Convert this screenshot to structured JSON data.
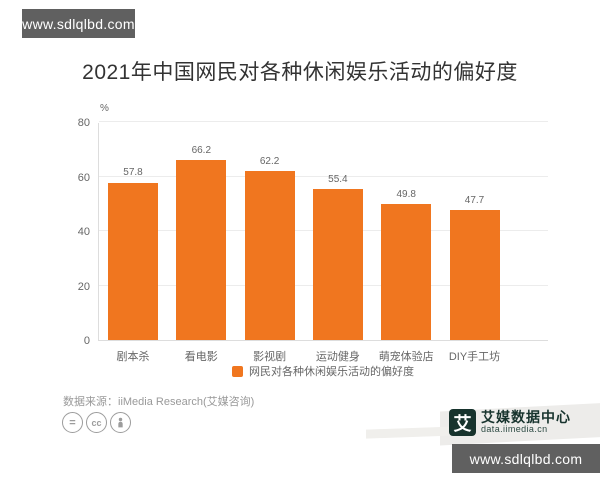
{
  "watermark_top": {
    "text": "www.sdlqlbd.com"
  },
  "watermark_bottom": {
    "text": "www.sdlqlbd.com"
  },
  "chart_data": {
    "type": "bar",
    "title": "2021年中国网民对各种休闲娱乐活动的偏好度",
    "categories": [
      "剧本杀",
      "看电影",
      "影视剧",
      "运动健身",
      "萌宠体验店",
      "DIY手工坊"
    ],
    "values": [
      57.8,
      66.2,
      62.2,
      55.4,
      49.8,
      47.7
    ],
    "unit": "%",
    "ylim": [
      0,
      80
    ],
    "yticks": [
      0,
      20,
      40,
      60,
      80
    ],
    "grid": true,
    "bar_color": "#F0761F",
    "legend_entries": [
      "网民对各种休闲娱乐活动的偏好度"
    ],
    "legend_position": "bottom"
  },
  "legend": {
    "label": "网民对各种休闲娱乐活动的偏好度",
    "color": "#F0761F"
  },
  "source": {
    "text": "数据来源：iiMedia Research(艾媒咨询)"
  },
  "license_icons": [
    "equals-icon",
    "cc-icon",
    "person-icon"
  ],
  "brand": {
    "logo_char": "艾",
    "name": "艾媒数据中心",
    "url": "data.iimedia.cn",
    "color": "#17332d"
  }
}
